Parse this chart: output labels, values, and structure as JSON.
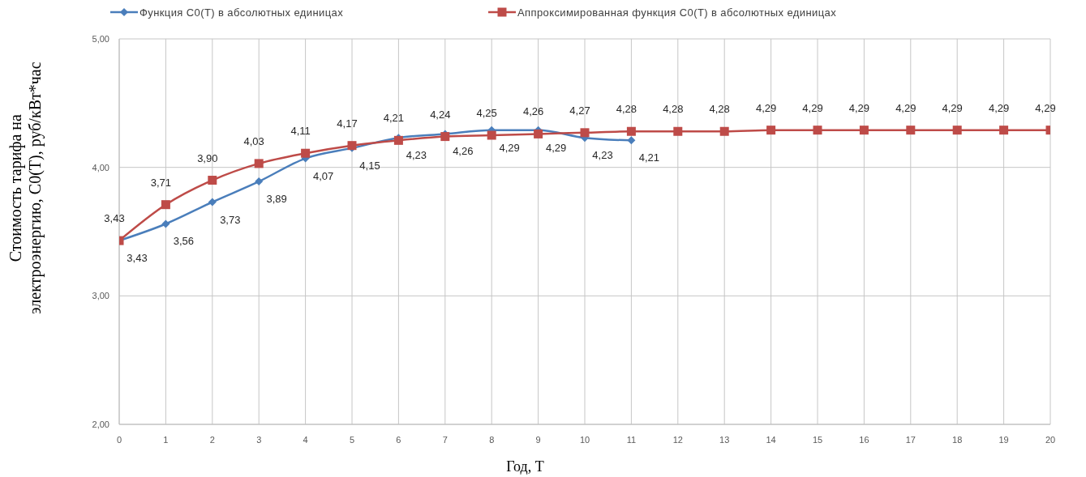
{
  "chart_data": {
    "type": "line",
    "xlabel": "Год, T",
    "ylabel": "Стоимость тарифа на электроэнергию, C0(T), руб/кВт*час",
    "x": [
      0,
      1,
      2,
      3,
      4,
      5,
      6,
      7,
      8,
      9,
      10,
      11,
      12,
      13,
      14,
      15,
      16,
      17,
      18,
      19,
      20
    ],
    "xlim": [
      0,
      20
    ],
    "xticks": [
      0,
      1,
      2,
      3,
      4,
      5,
      6,
      7,
      8,
      9,
      10,
      11,
      12,
      13,
      14,
      15,
      16,
      17,
      18,
      19,
      20
    ],
    "ylim": [
      2,
      5
    ],
    "yticks": [
      {
        "value": 2,
        "label": "2,00"
      },
      {
        "value": 3,
        "label": "3,00"
      },
      {
        "value": 4,
        "label": "4,00"
      },
      {
        "value": 5,
        "label": "5,00"
      }
    ],
    "grid": true,
    "legend": "top",
    "series": [
      {
        "name": "Функция C0(T) в абсолютных единицах",
        "color": "#4a7ebb",
        "marker": "diamond",
        "x": [
          0,
          1,
          2,
          3,
          4,
          5,
          6,
          7,
          8,
          9,
          10,
          11
        ],
        "values": [
          3.43,
          3.56,
          3.73,
          3.89,
          4.07,
          4.15,
          4.23,
          4.26,
          4.29,
          4.29,
          4.23,
          4.21
        ],
        "value_labels": [
          "3,43",
          "3,56",
          "3,73",
          "3,89",
          "4,07",
          "4,15",
          "4,23",
          "4,26",
          "4,29",
          "4,29",
          "4,23",
          "4,21"
        ]
      },
      {
        "name": "Аппроксимированная функция C0(T) в абсолютных единицах",
        "color": "#be4b48",
        "marker": "square",
        "values": [
          3.43,
          3.71,
          3.9,
          4.03,
          4.11,
          4.17,
          4.21,
          4.24,
          4.25,
          4.26,
          4.27,
          4.28,
          4.28,
          4.28,
          4.29,
          4.29,
          4.29,
          4.29,
          4.29,
          4.29,
          4.29
        ],
        "value_labels": [
          "3,43",
          "3,71",
          "3,90",
          "4,03",
          "4,11",
          "4,17",
          "4,21",
          "4,24",
          "4,25",
          "4,26",
          "4,27",
          "4,28",
          "4,28",
          "4,28",
          "4,29",
          "4,29",
          "4,29",
          "4,29",
          "4,29",
          "4,29",
          "4,29"
        ]
      }
    ]
  }
}
